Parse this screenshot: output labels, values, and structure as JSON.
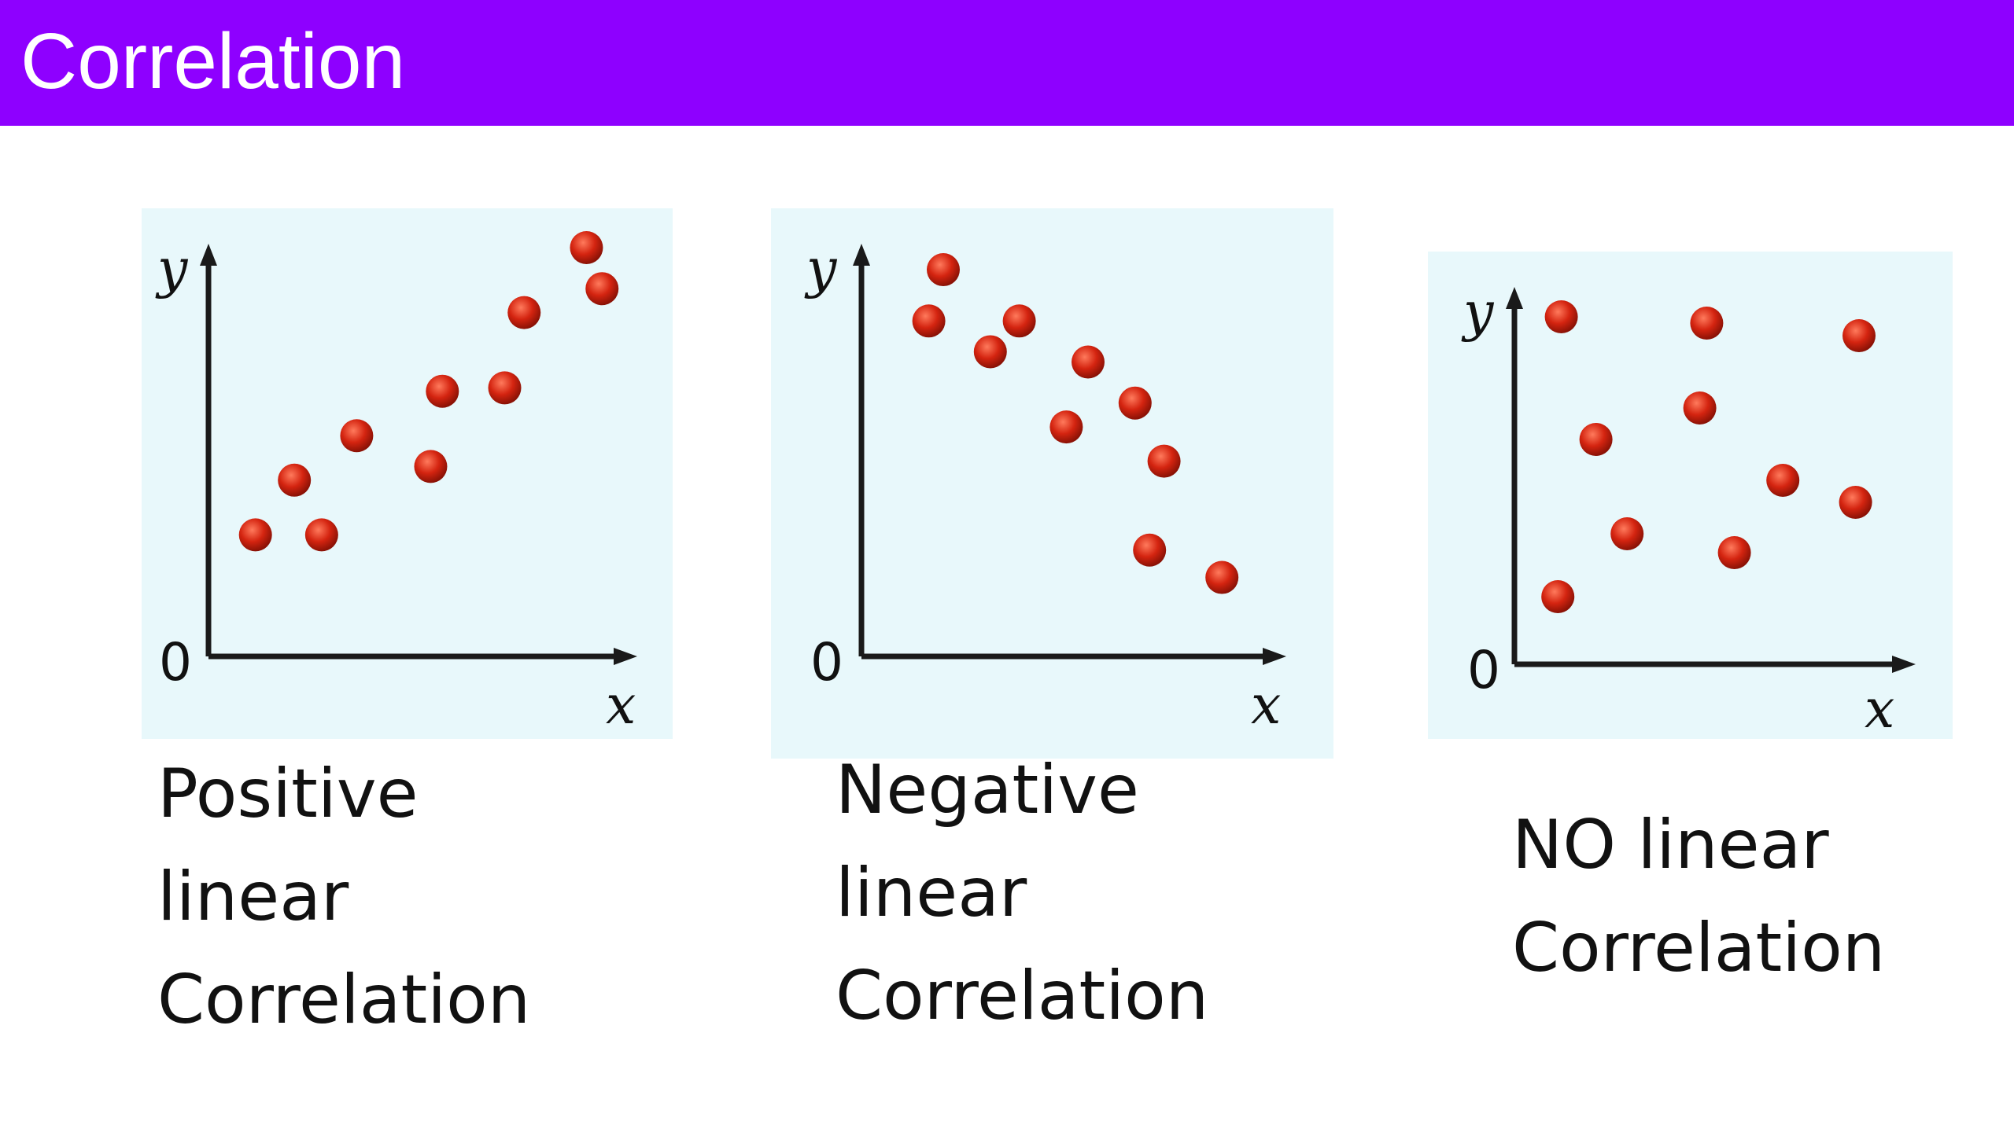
{
  "title": "Correlation",
  "colors": {
    "header_bg": "#8e00ff",
    "header_text": "#ffffff",
    "panel_bg": "#e8f8fb",
    "point": "#d42410",
    "axis": "#1a1a1a"
  },
  "chart_data": [
    {
      "type": "scatter",
      "xlabel": "x",
      "ylabel": "y",
      "origin_label": "0",
      "xlim": [
        0,
        10
      ],
      "ylim": [
        0,
        10
      ],
      "grid": false,
      "caption": [
        "Positive",
        "linear",
        "Correlation"
      ],
      "points": [
        {
          "x": 0.6,
          "y": 1.6
        },
        {
          "x": 1.6,
          "y": 3.2
        },
        {
          "x": 2.3,
          "y": 1.6
        },
        {
          "x": 3.2,
          "y": 4.5
        },
        {
          "x": 5.1,
          "y": 3.6
        },
        {
          "x": 5.4,
          "y": 5.8
        },
        {
          "x": 7.0,
          "y": 5.9
        },
        {
          "x": 7.5,
          "y": 8.1
        },
        {
          "x": 9.1,
          "y": 10.0
        },
        {
          "x": 9.5,
          "y": 8.8
        }
      ]
    },
    {
      "type": "scatter",
      "xlabel": "x",
      "ylabel": "y",
      "origin_label": "0",
      "xlim": [
        0,
        10
      ],
      "ylim": [
        0,
        10
      ],
      "grid": false,
      "caption": [
        "Negative",
        "linear",
        "Correlation"
      ],
      "points": [
        {
          "x": 1.1,
          "y": 8.2
        },
        {
          "x": 1.5,
          "y": 9.7
        },
        {
          "x": 2.8,
          "y": 7.3
        },
        {
          "x": 3.6,
          "y": 8.2
        },
        {
          "x": 4.9,
          "y": 5.1
        },
        {
          "x": 5.5,
          "y": 7.0
        },
        {
          "x": 6.8,
          "y": 5.8
        },
        {
          "x": 7.6,
          "y": 4.1
        },
        {
          "x": 7.2,
          "y": 1.5
        },
        {
          "x": 9.2,
          "y": 0.7
        }
      ]
    },
    {
      "type": "scatter",
      "xlabel": "x",
      "ylabel": "y",
      "origin_label": "0",
      "xlim": [
        0,
        10
      ],
      "ylim": [
        0,
        10
      ],
      "grid": false,
      "caption": [
        "NO linear",
        "Correlation"
      ],
      "points": [
        {
          "x": 0.9,
          "y": 9.8
        },
        {
          "x": 0.8,
          "y": 0.9
        },
        {
          "x": 1.9,
          "y": 5.9
        },
        {
          "x": 2.8,
          "y": 2.9
        },
        {
          "x": 5.1,
          "y": 9.6
        },
        {
          "x": 4.9,
          "y": 6.9
        },
        {
          "x": 5.9,
          "y": 2.3
        },
        {
          "x": 7.3,
          "y": 4.6
        },
        {
          "x": 9.5,
          "y": 9.2
        },
        {
          "x": 9.4,
          "y": 3.9
        }
      ]
    }
  ]
}
